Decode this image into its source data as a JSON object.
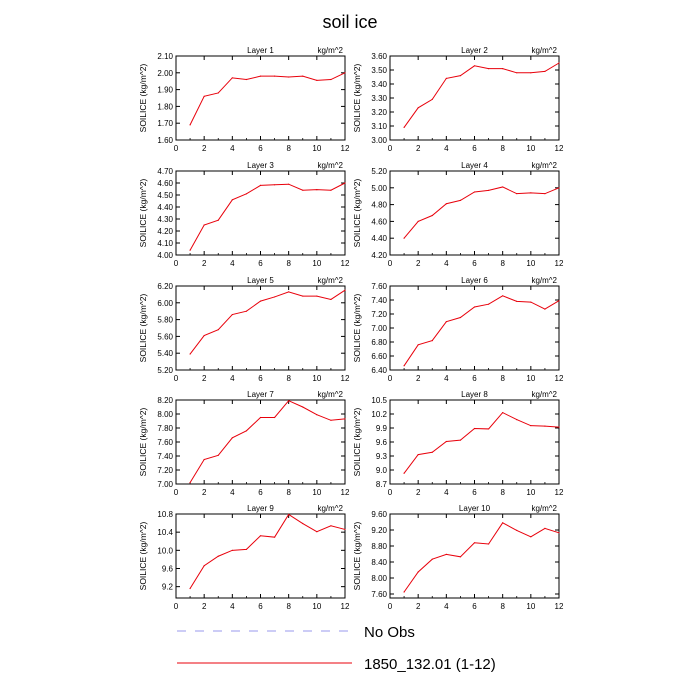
{
  "title": "soil ice",
  "legend": [
    {
      "label": "No Obs",
      "color": "#9999ee",
      "dash": true
    },
    {
      "label": "1850_132.01 (1-12)",
      "color": "#e8000b",
      "dash": false
    }
  ],
  "chart_data": [
    {
      "type": "line",
      "title": "Layer 1",
      "units": "kg/m^2",
      "ylabel": "SOILICE  (kg/m^2)",
      "x": [
        1,
        2,
        3,
        4,
        5,
        6,
        7,
        8,
        9,
        10,
        11,
        12
      ],
      "xlim": [
        0,
        12
      ],
      "xticks": [
        0,
        2,
        4,
        6,
        8,
        10,
        12
      ],
      "ylim": [
        1.6,
        2.1
      ],
      "yticks": [
        "1.60",
        "1.70",
        "1.80",
        "1.90",
        "2.00",
        "2.10"
      ],
      "series": [
        {
          "values": [
            1.69,
            1.86,
            1.88,
            1.97,
            1.96,
            1.98,
            1.98,
            1.975,
            1.98,
            1.955,
            1.96,
            2.0
          ]
        }
      ]
    },
    {
      "type": "line",
      "title": "Layer 2",
      "units": "kg/m^2",
      "ylabel": "SOILICE  (kg/m^2)",
      "x": [
        1,
        2,
        3,
        4,
        5,
        6,
        7,
        8,
        9,
        10,
        11,
        12
      ],
      "xlim": [
        0,
        12
      ],
      "xticks": [
        0,
        2,
        4,
        6,
        8,
        10,
        12
      ],
      "ylim": [
        3.0,
        3.6
      ],
      "yticks": [
        "3.00",
        "3.10",
        "3.20",
        "3.30",
        "3.40",
        "3.50",
        "3.60"
      ],
      "series": [
        {
          "values": [
            3.09,
            3.23,
            3.29,
            3.44,
            3.46,
            3.53,
            3.51,
            3.51,
            3.48,
            3.48,
            3.49,
            3.55
          ]
        }
      ]
    },
    {
      "type": "line",
      "title": "Layer 3",
      "units": "kg/m^2",
      "ylabel": "SOILICE  (kg/m^2)",
      "x": [
        1,
        2,
        3,
        4,
        5,
        6,
        7,
        8,
        9,
        10,
        11,
        12
      ],
      "xlim": [
        0,
        12
      ],
      "xticks": [
        0,
        2,
        4,
        6,
        8,
        10,
        12
      ],
      "ylim": [
        4.0,
        4.7
      ],
      "yticks": [
        "4.00",
        "4.10",
        "4.20",
        "4.30",
        "4.40",
        "4.50",
        "4.60",
        "4.70"
      ],
      "series": [
        {
          "values": [
            4.04,
            4.25,
            4.29,
            4.46,
            4.51,
            4.58,
            4.585,
            4.59,
            4.54,
            4.545,
            4.54,
            4.6
          ]
        }
      ]
    },
    {
      "type": "line",
      "title": "Layer 4",
      "units": "kg/m^2",
      "ylabel": "SOILICE  (kg/m^2)",
      "x": [
        1,
        2,
        3,
        4,
        5,
        6,
        7,
        8,
        9,
        10,
        11,
        12
      ],
      "xlim": [
        0,
        12
      ],
      "xticks": [
        0,
        2,
        4,
        6,
        8,
        10,
        12
      ],
      "ylim": [
        4.2,
        5.2
      ],
      "yticks": [
        "4.20",
        "4.40",
        "4.60",
        "4.80",
        "5.00",
        "5.20"
      ],
      "series": [
        {
          "values": [
            4.4,
            4.6,
            4.67,
            4.81,
            4.85,
            4.95,
            4.97,
            5.01,
            4.93,
            4.94,
            4.93,
            5.0
          ]
        }
      ]
    },
    {
      "type": "line",
      "title": "Layer 5",
      "units": "kg/m^2",
      "ylabel": "SOILICE  (kg/m^2)",
      "x": [
        1,
        2,
        3,
        4,
        5,
        6,
        7,
        8,
        9,
        10,
        11,
        12
      ],
      "xlim": [
        0,
        12
      ],
      "xticks": [
        0,
        2,
        4,
        6,
        8,
        10,
        12
      ],
      "ylim": [
        5.2,
        6.2
      ],
      "yticks": [
        "5.20",
        "5.40",
        "5.60",
        "5.80",
        "6.00",
        "6.20"
      ],
      "series": [
        {
          "values": [
            5.39,
            5.61,
            5.68,
            5.86,
            5.9,
            6.02,
            6.07,
            6.13,
            6.08,
            6.08,
            6.04,
            6.15
          ]
        }
      ]
    },
    {
      "type": "line",
      "title": "Layer 6",
      "units": "kg/m^2",
      "ylabel": "SOILICE  (kg/m^2)",
      "x": [
        1,
        2,
        3,
        4,
        5,
        6,
        7,
        8,
        9,
        10,
        11,
        12
      ],
      "xlim": [
        0,
        12
      ],
      "xticks": [
        0,
        2,
        4,
        6,
        8,
        10,
        12
      ],
      "ylim": [
        6.4,
        7.6
      ],
      "yticks": [
        "6.40",
        "6.60",
        "6.80",
        "7.00",
        "7.20",
        "7.40",
        "7.60"
      ],
      "series": [
        {
          "values": [
            6.46,
            6.76,
            6.82,
            7.09,
            7.15,
            7.3,
            7.34,
            7.46,
            7.38,
            7.37,
            7.27,
            7.39
          ]
        }
      ]
    },
    {
      "type": "line",
      "title": "Layer 7",
      "units": "kg/m^2",
      "ylabel": "SOILICE  (kg/m^2)",
      "x": [
        1,
        2,
        3,
        4,
        5,
        6,
        7,
        8,
        9,
        10,
        11,
        12
      ],
      "xlim": [
        0,
        12
      ],
      "xticks": [
        0,
        2,
        4,
        6,
        8,
        10,
        12
      ],
      "ylim": [
        7.0,
        8.2
      ],
      "yticks": [
        "7.00",
        "7.20",
        "7.40",
        "7.60",
        "7.80",
        "8.00",
        "8.20"
      ],
      "series": [
        {
          "values": [
            7.02,
            7.35,
            7.41,
            7.66,
            7.76,
            7.95,
            7.95,
            8.19,
            8.1,
            7.99,
            7.91,
            7.93
          ]
        }
      ]
    },
    {
      "type": "line",
      "title": "Layer 8",
      "units": "kg/m^2",
      "ylabel": "SOILICE  (kg/m^2)",
      "x": [
        1,
        2,
        3,
        4,
        5,
        6,
        7,
        8,
        9,
        10,
        11,
        12
      ],
      "xlim": [
        0,
        12
      ],
      "xticks": [
        0,
        2,
        4,
        6,
        8,
        10,
        12
      ],
      "ylim": [
        8.7,
        10.5
      ],
      "yticks": [
        "8.7",
        "9.0",
        "9.3",
        "9.6",
        "9.9",
        "10.2",
        "10.5"
      ],
      "series": [
        {
          "values": [
            8.93,
            9.33,
            9.38,
            9.61,
            9.64,
            9.89,
            9.88,
            10.23,
            10.08,
            9.95,
            9.94,
            9.92
          ]
        }
      ]
    },
    {
      "type": "line",
      "title": "Layer 9",
      "units": "kg/m^2",
      "ylabel": "SOILICE  (kg/m^2)",
      "x": [
        1,
        2,
        3,
        4,
        5,
        6,
        7,
        8,
        9,
        10,
        11,
        12
      ],
      "xlim": [
        0,
        12
      ],
      "xticks": [
        0,
        2,
        4,
        6,
        8,
        10,
        12
      ],
      "ylim": [
        8.95,
        10.8
      ],
      "yticks": [
        "9.2",
        "9.6",
        "10.0",
        "10.4",
        "10.8"
      ],
      "series": [
        {
          "values": [
            9.16,
            9.66,
            9.87,
            10.0,
            10.02,
            10.32,
            10.29,
            10.79,
            10.59,
            10.41,
            10.54,
            10.46
          ]
        }
      ]
    },
    {
      "type": "line",
      "title": "Layer 10",
      "units": "kg/m^2",
      "ylabel": "SOILICE  (kg/m^2)",
      "x": [
        1,
        2,
        3,
        4,
        5,
        6,
        7,
        8,
        9,
        10,
        11,
        12
      ],
      "xlim": [
        0,
        12
      ],
      "xticks": [
        0,
        2,
        4,
        6,
        8,
        10,
        12
      ],
      "ylim": [
        7.5,
        9.6
      ],
      "yticks": [
        "7.60",
        "8.00",
        "8.40",
        "8.80",
        "9.20",
        "9.60"
      ],
      "series": [
        {
          "values": [
            7.65,
            8.15,
            8.47,
            8.59,
            8.53,
            8.88,
            8.85,
            9.38,
            9.19,
            9.03,
            9.24,
            9.13
          ]
        }
      ]
    }
  ]
}
